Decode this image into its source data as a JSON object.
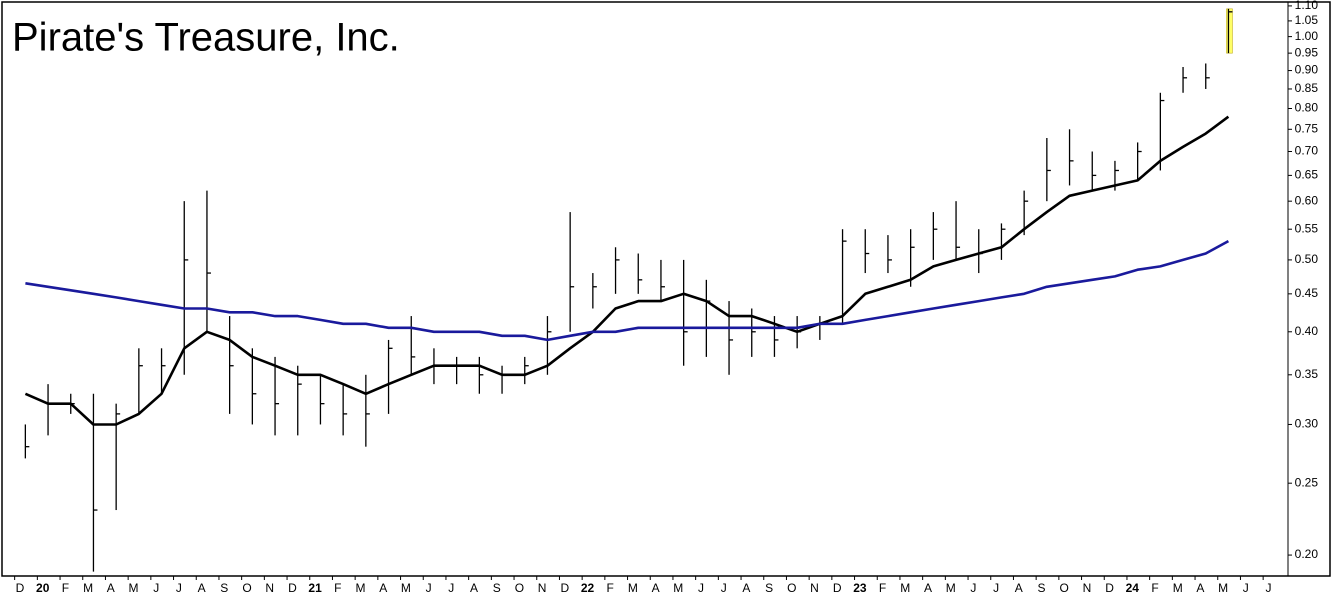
{
  "chart_data": {
    "type": "ohlc",
    "title": "Pirate's Treasure, Inc.",
    "log_scale": true,
    "bar_color": "#000000",
    "highlight_index": 53,
    "highlight_color": "#ffff66",
    "categories": [
      "D",
      "20",
      "F",
      "M",
      "A",
      "M",
      "J",
      "J",
      "A",
      "S",
      "O",
      "N",
      "D",
      "21",
      "F",
      "M",
      "A",
      "M",
      "J",
      "J",
      "A",
      "S",
      "O",
      "N",
      "D",
      "22",
      "F",
      "M",
      "A",
      "M",
      "J",
      "J",
      "A",
      "S",
      "O",
      "N",
      "D",
      "23",
      "F",
      "M",
      "A",
      "M",
      "J",
      "J",
      "A",
      "S",
      "O",
      "N",
      "D",
      "24",
      "F",
      "M",
      "A",
      "M",
      "J",
      "J"
    ],
    "high": [
      0.3,
      0.34,
      0.33,
      0.33,
      0.32,
      0.38,
      0.38,
      0.6,
      0.62,
      0.42,
      0.38,
      0.37,
      0.36,
      0.35,
      0.34,
      0.35,
      0.39,
      0.42,
      0.38,
      0.37,
      0.37,
      0.36,
      0.37,
      0.42,
      0.58,
      0.48,
      0.52,
      0.51,
      0.5,
      0.5,
      0.47,
      0.44,
      0.43,
      0.42,
      0.42,
      0.42,
      0.55,
      0.55,
      0.54,
      0.55,
      0.58,
      0.6,
      0.55,
      0.56,
      0.62,
      0.73,
      0.75,
      0.7,
      0.68,
      0.72,
      0.84,
      0.91,
      0.92,
      1.09,
      null,
      null
    ],
    "low": [
      0.27,
      0.29,
      0.31,
      0.19,
      0.23,
      0.31,
      0.33,
      0.35,
      0.4,
      0.31,
      0.3,
      0.29,
      0.29,
      0.3,
      0.29,
      0.28,
      0.31,
      0.35,
      0.34,
      0.34,
      0.33,
      0.33,
      0.34,
      0.35,
      0.4,
      0.43,
      0.45,
      0.45,
      0.44,
      0.36,
      0.37,
      0.35,
      0.37,
      0.37,
      0.38,
      0.39,
      0.41,
      0.48,
      0.48,
      0.46,
      0.5,
      0.5,
      0.48,
      0.5,
      0.54,
      0.6,
      0.63,
      0.62,
      0.62,
      0.64,
      0.66,
      0.84,
      0.85,
      0.95,
      null,
      null
    ],
    "close": [
      0.28,
      0.32,
      0.32,
      0.23,
      0.31,
      0.36,
      0.36,
      0.5,
      0.48,
      0.36,
      0.33,
      0.32,
      0.34,
      0.32,
      0.31,
      0.31,
      0.38,
      0.37,
      0.36,
      0.36,
      0.35,
      0.35,
      0.36,
      0.4,
      0.46,
      0.46,
      0.5,
      0.47,
      0.46,
      0.4,
      0.44,
      0.39,
      0.4,
      0.39,
      0.4,
      0.41,
      0.53,
      0.51,
      0.5,
      0.52,
      0.55,
      0.52,
      0.51,
      0.55,
      0.6,
      0.66,
      0.68,
      0.65,
      0.66,
      0.7,
      0.82,
      0.88,
      0.88,
      1.08,
      null,
      null
    ],
    "moving_averages": [
      {
        "color": "#000000",
        "values": [
          0.33,
          0.32,
          0.32,
          0.3,
          0.3,
          0.31,
          0.33,
          0.38,
          0.4,
          0.39,
          0.37,
          0.36,
          0.35,
          0.35,
          0.34,
          0.33,
          0.34,
          0.35,
          0.36,
          0.36,
          0.36,
          0.35,
          0.35,
          0.36,
          0.38,
          0.4,
          0.43,
          0.44,
          0.44,
          0.45,
          0.44,
          0.42,
          0.42,
          0.41,
          0.4,
          0.41,
          0.42,
          0.45,
          0.46,
          0.47,
          0.49,
          0.5,
          0.51,
          0.52,
          0.55,
          0.58,
          0.61,
          0.62,
          0.63,
          0.64,
          0.68,
          0.71,
          0.74,
          0.78,
          null,
          null
        ]
      },
      {
        "color": "#1a1a9c",
        "values": [
          0.465,
          0.46,
          0.455,
          0.45,
          0.445,
          0.44,
          0.435,
          0.43,
          0.43,
          0.425,
          0.425,
          0.42,
          0.42,
          0.415,
          0.41,
          0.41,
          0.405,
          0.405,
          0.4,
          0.4,
          0.4,
          0.395,
          0.395,
          0.39,
          0.395,
          0.4,
          0.4,
          0.405,
          0.405,
          0.405,
          0.405,
          0.405,
          0.405,
          0.405,
          0.405,
          0.41,
          0.41,
          0.415,
          0.42,
          0.425,
          0.43,
          0.435,
          0.44,
          0.445,
          0.45,
          0.46,
          0.465,
          0.47,
          0.475,
          0.485,
          0.49,
          0.5,
          0.51,
          0.53,
          null,
          null
        ]
      }
    ],
    "ylim": [
      0.188,
      1.11
    ],
    "yticks": [
      {
        "value": 0.2,
        "label": "0.20"
      },
      {
        "value": 0.25,
        "label": "0.25"
      },
      {
        "value": 0.3,
        "label": "0.30"
      },
      {
        "value": 0.35,
        "label": "0.35"
      },
      {
        "value": 0.4,
        "label": "0.40"
      },
      {
        "value": 0.45,
        "label": "0.45"
      },
      {
        "value": 0.5,
        "label": "0.50"
      },
      {
        "value": 0.55,
        "label": "0.55"
      },
      {
        "value": 0.6,
        "label": "0.60"
      },
      {
        "value": 0.65,
        "label": "0.65"
      },
      {
        "value": 0.7,
        "label": "0.70"
      },
      {
        "value": 0.75,
        "label": "0.75"
      },
      {
        "value": 0.8,
        "label": "0.80"
      },
      {
        "value": 0.85,
        "label": "0.85"
      },
      {
        "value": 0.9,
        "label": "0.90"
      },
      {
        "value": 0.95,
        "label": "0.95"
      },
      {
        "value": 1.0,
        "label": "1.00"
      },
      {
        "value": 1.05,
        "label": "1.05"
      },
      {
        "value": 1.1,
        "label": "1.10"
      }
    ]
  }
}
